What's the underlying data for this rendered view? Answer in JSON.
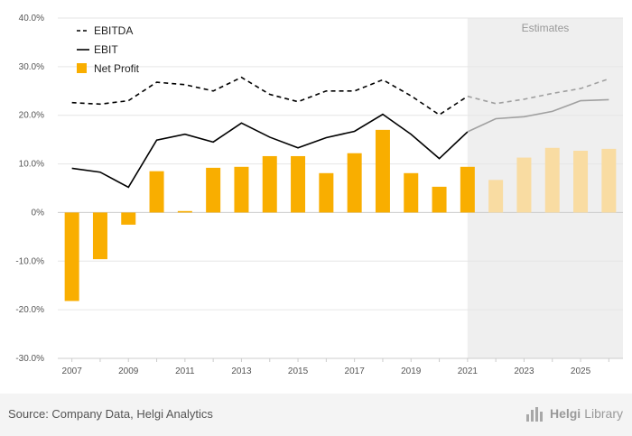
{
  "chart_data": {
    "type": "bar",
    "x": [
      2007,
      2008,
      2009,
      2010,
      2011,
      2012,
      2013,
      2014,
      2015,
      2016,
      2017,
      2018,
      2019,
      2020,
      2021,
      2022,
      2023,
      2024,
      2025,
      2026
    ],
    "x_tick_labels": [
      "2007",
      "2009",
      "2011",
      "2013",
      "2015",
      "2017",
      "2019",
      "2021",
      "2023",
      "2025"
    ],
    "y_tick_labels": [
      "40.0%",
      "30.0%",
      "20.0%",
      "10.0%",
      "0%",
      "-10.0%",
      "-20.0%",
      "-30.0%"
    ],
    "ylim": [
      -30,
      40
    ],
    "y_unit": "%",
    "estimates_from": 2022,
    "estimates_label": "Estimates",
    "grid": true,
    "legend_position": "top-left",
    "series": [
      {
        "name": "EBITDA",
        "kind": "line",
        "style": "dashed",
        "color": "#000000",
        "values": [
          22.6,
          22.3,
          23.0,
          26.8,
          26.3,
          25.0,
          27.8,
          24.3,
          22.8,
          25.0,
          25.0,
          27.3,
          24.0,
          20.1,
          23.9,
          22.4,
          23.3,
          24.5,
          25.5,
          27.5
        ]
      },
      {
        "name": "EBIT",
        "kind": "line",
        "style": "solid",
        "color": "#000000",
        "values": [
          9.1,
          8.3,
          5.2,
          14.9,
          16.1,
          14.5,
          18.4,
          15.5,
          13.3,
          15.4,
          16.7,
          20.2,
          16.1,
          11.1,
          16.6,
          19.3,
          19.7,
          20.8,
          23.0,
          23.2
        ]
      },
      {
        "name": "Net Profit",
        "kind": "bar",
        "color": "#f9ae00",
        "values": [
          -18.2,
          -9.6,
          -2.5,
          8.5,
          0.3,
          9.2,
          9.4,
          11.6,
          11.6,
          8.1,
          12.2,
          17.0,
          8.1,
          5.3,
          9.4,
          6.7,
          11.3,
          13.3,
          12.7,
          13.1
        ]
      }
    ],
    "estimate_colors": {
      "line": "#a0a0a0",
      "bar": "#f9dca2"
    }
  },
  "footer": {
    "source": "Source: Company Data, Helgi Analytics",
    "logo_bold": "Helgi",
    "logo_light": "Library"
  }
}
